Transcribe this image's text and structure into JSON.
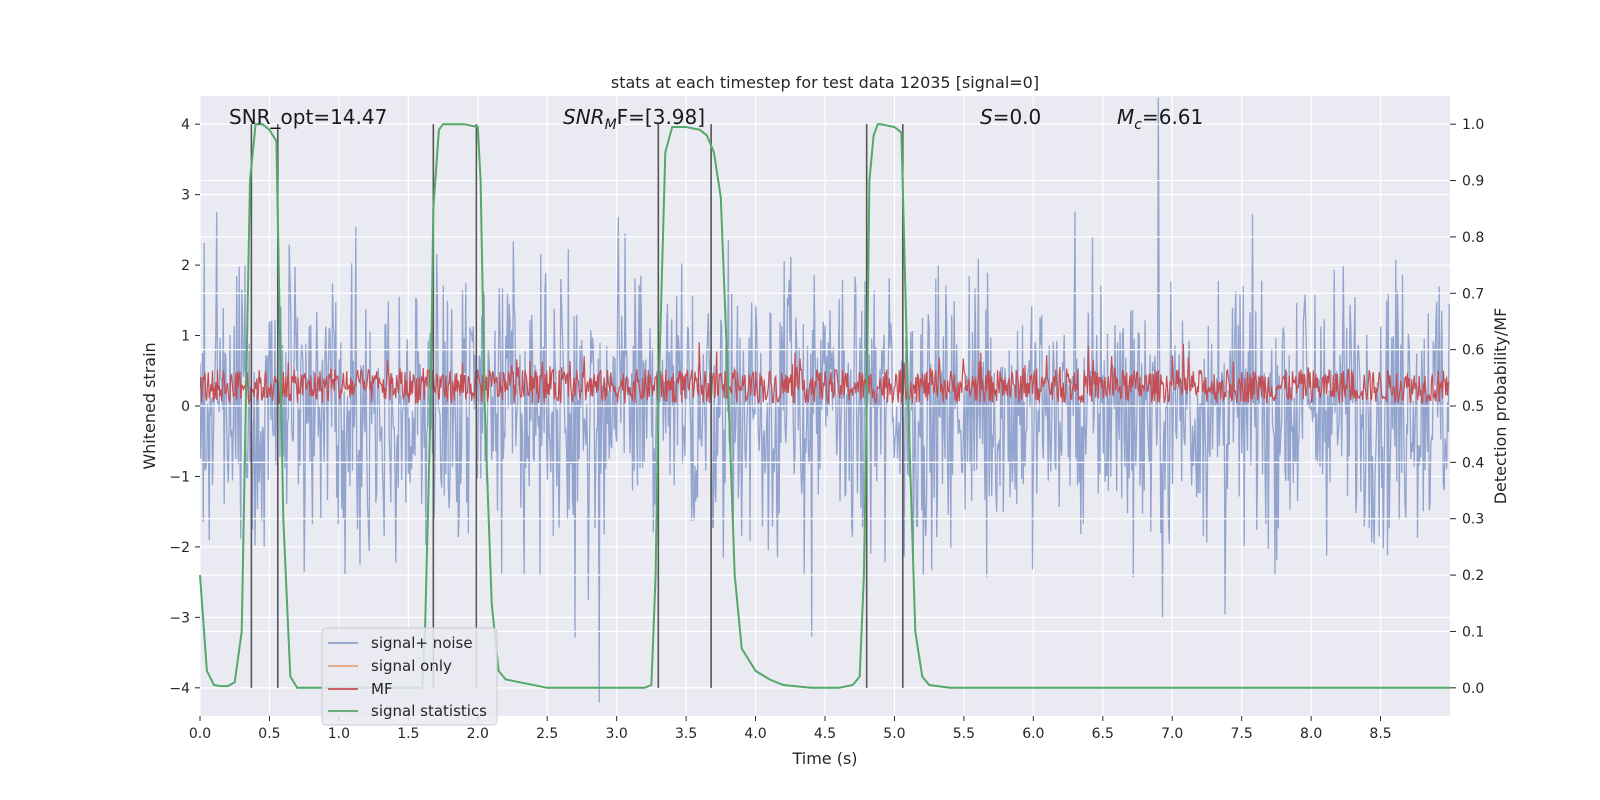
{
  "chart_data": {
    "type": "line",
    "title": "stats at each timestep for test data 12035 [signal=0]",
    "xlabel": "Time (s)",
    "ylabel": "Whitened strain",
    "ylabel_right": "Detection probability/MF",
    "xlim": [
      0.0,
      9.0
    ],
    "ylim": [
      -4.4,
      4.4
    ],
    "ylim_right": [
      -0.05,
      1.05
    ],
    "xticks": [
      "0.0",
      "0.5",
      "1.0",
      "1.5",
      "2.0",
      "2.5",
      "3.0",
      "3.5",
      "4.0",
      "4.5",
      "5.0",
      "5.5",
      "6.0",
      "6.5",
      "7.0",
      "7.5",
      "8.0",
      "8.5"
    ],
    "yticks": [
      "−4",
      "−3",
      "−2",
      "−1",
      "0",
      "1",
      "2",
      "3",
      "4"
    ],
    "yticks_right": [
      "0.0",
      "0.1",
      "0.2",
      "0.3",
      "0.4",
      "0.5",
      "0.6",
      "0.7",
      "0.8",
      "0.9",
      "1.0"
    ],
    "grid": true,
    "legend_position": "lower-left",
    "annotations": {
      "snr_opt": "SNR_opt=14.47",
      "snr_mf_sym": "SNR",
      "snr_mf_sub": "M",
      "snr_mf_rest": "F=[3.98]",
      "s_sym": "S",
      "s_rest": "=0.0",
      "mc_sym": "M",
      "mc_sub": "c",
      "mc_rest": "=6.61"
    },
    "series": [
      {
        "name": "signal+ noise",
        "color": "#8da0cb",
        "style": "noise, amplitude ~±2 peaking near ±3.8, 0–9 s"
      },
      {
        "name": "signal only",
        "color": "#e8a07a",
        "values": []
      },
      {
        "name": "MF",
        "color": "#c44e52",
        "axis": "right",
        "baseline": 0.5,
        "range": [
          0.5,
          0.62
        ]
      },
      {
        "name": "signal statistics",
        "color": "#55a868",
        "axis": "right",
        "x": [
          0.0,
          0.05,
          0.1,
          0.15,
          0.2,
          0.25,
          0.3,
          0.33,
          0.36,
          0.4,
          0.45,
          0.5,
          0.55,
          0.6,
          0.65,
          0.7,
          0.8,
          0.9,
          1.0,
          1.2,
          1.4,
          1.6,
          1.62,
          1.64,
          1.66,
          1.68,
          1.72,
          1.75,
          1.8,
          1.9,
          2.0,
          2.02,
          2.05,
          2.1,
          2.15,
          2.2,
          2.3,
          2.5,
          3.0,
          3.2,
          3.25,
          3.28,
          3.3,
          3.35,
          3.4,
          3.5,
          3.6,
          3.65,
          3.7,
          3.75,
          3.8,
          3.85,
          3.9,
          4.0,
          4.1,
          4.2,
          4.4,
          4.6,
          4.7,
          4.75,
          4.78,
          4.8,
          4.82,
          4.85,
          4.88,
          4.9,
          5.0,
          5.05,
          5.1,
          5.15,
          5.2,
          5.25,
          5.4,
          6.0,
          7.0,
          8.0,
          9.0
        ],
        "values": [
          0.2,
          0.03,
          0.005,
          0.003,
          0.003,
          0.01,
          0.1,
          0.5,
          0.9,
          1.0,
          1.0,
          0.99,
          0.97,
          0.3,
          0.02,
          0.0,
          0.0,
          0.0,
          0.0,
          0.0,
          0.0,
          0.0,
          0.1,
          0.3,
          0.5,
          0.85,
          0.99,
          1.0,
          1.0,
          1.0,
          0.995,
          0.9,
          0.5,
          0.15,
          0.03,
          0.015,
          0.01,
          0.0,
          0.0,
          0.0,
          0.005,
          0.2,
          0.5,
          0.95,
          0.995,
          0.995,
          0.99,
          0.98,
          0.95,
          0.87,
          0.55,
          0.2,
          0.07,
          0.03,
          0.015,
          0.005,
          0.0,
          0.0,
          0.005,
          0.02,
          0.2,
          0.5,
          0.9,
          0.98,
          1.0,
          1.0,
          0.995,
          0.985,
          0.5,
          0.1,
          0.02,
          0.005,
          0.0,
          0.0,
          0.0,
          0.0,
          0.0
        ]
      }
    ],
    "vlines_x": [
      0.37,
      0.56,
      1.68,
      1.99,
      3.3,
      3.68,
      4.8,
      5.06
    ]
  }
}
